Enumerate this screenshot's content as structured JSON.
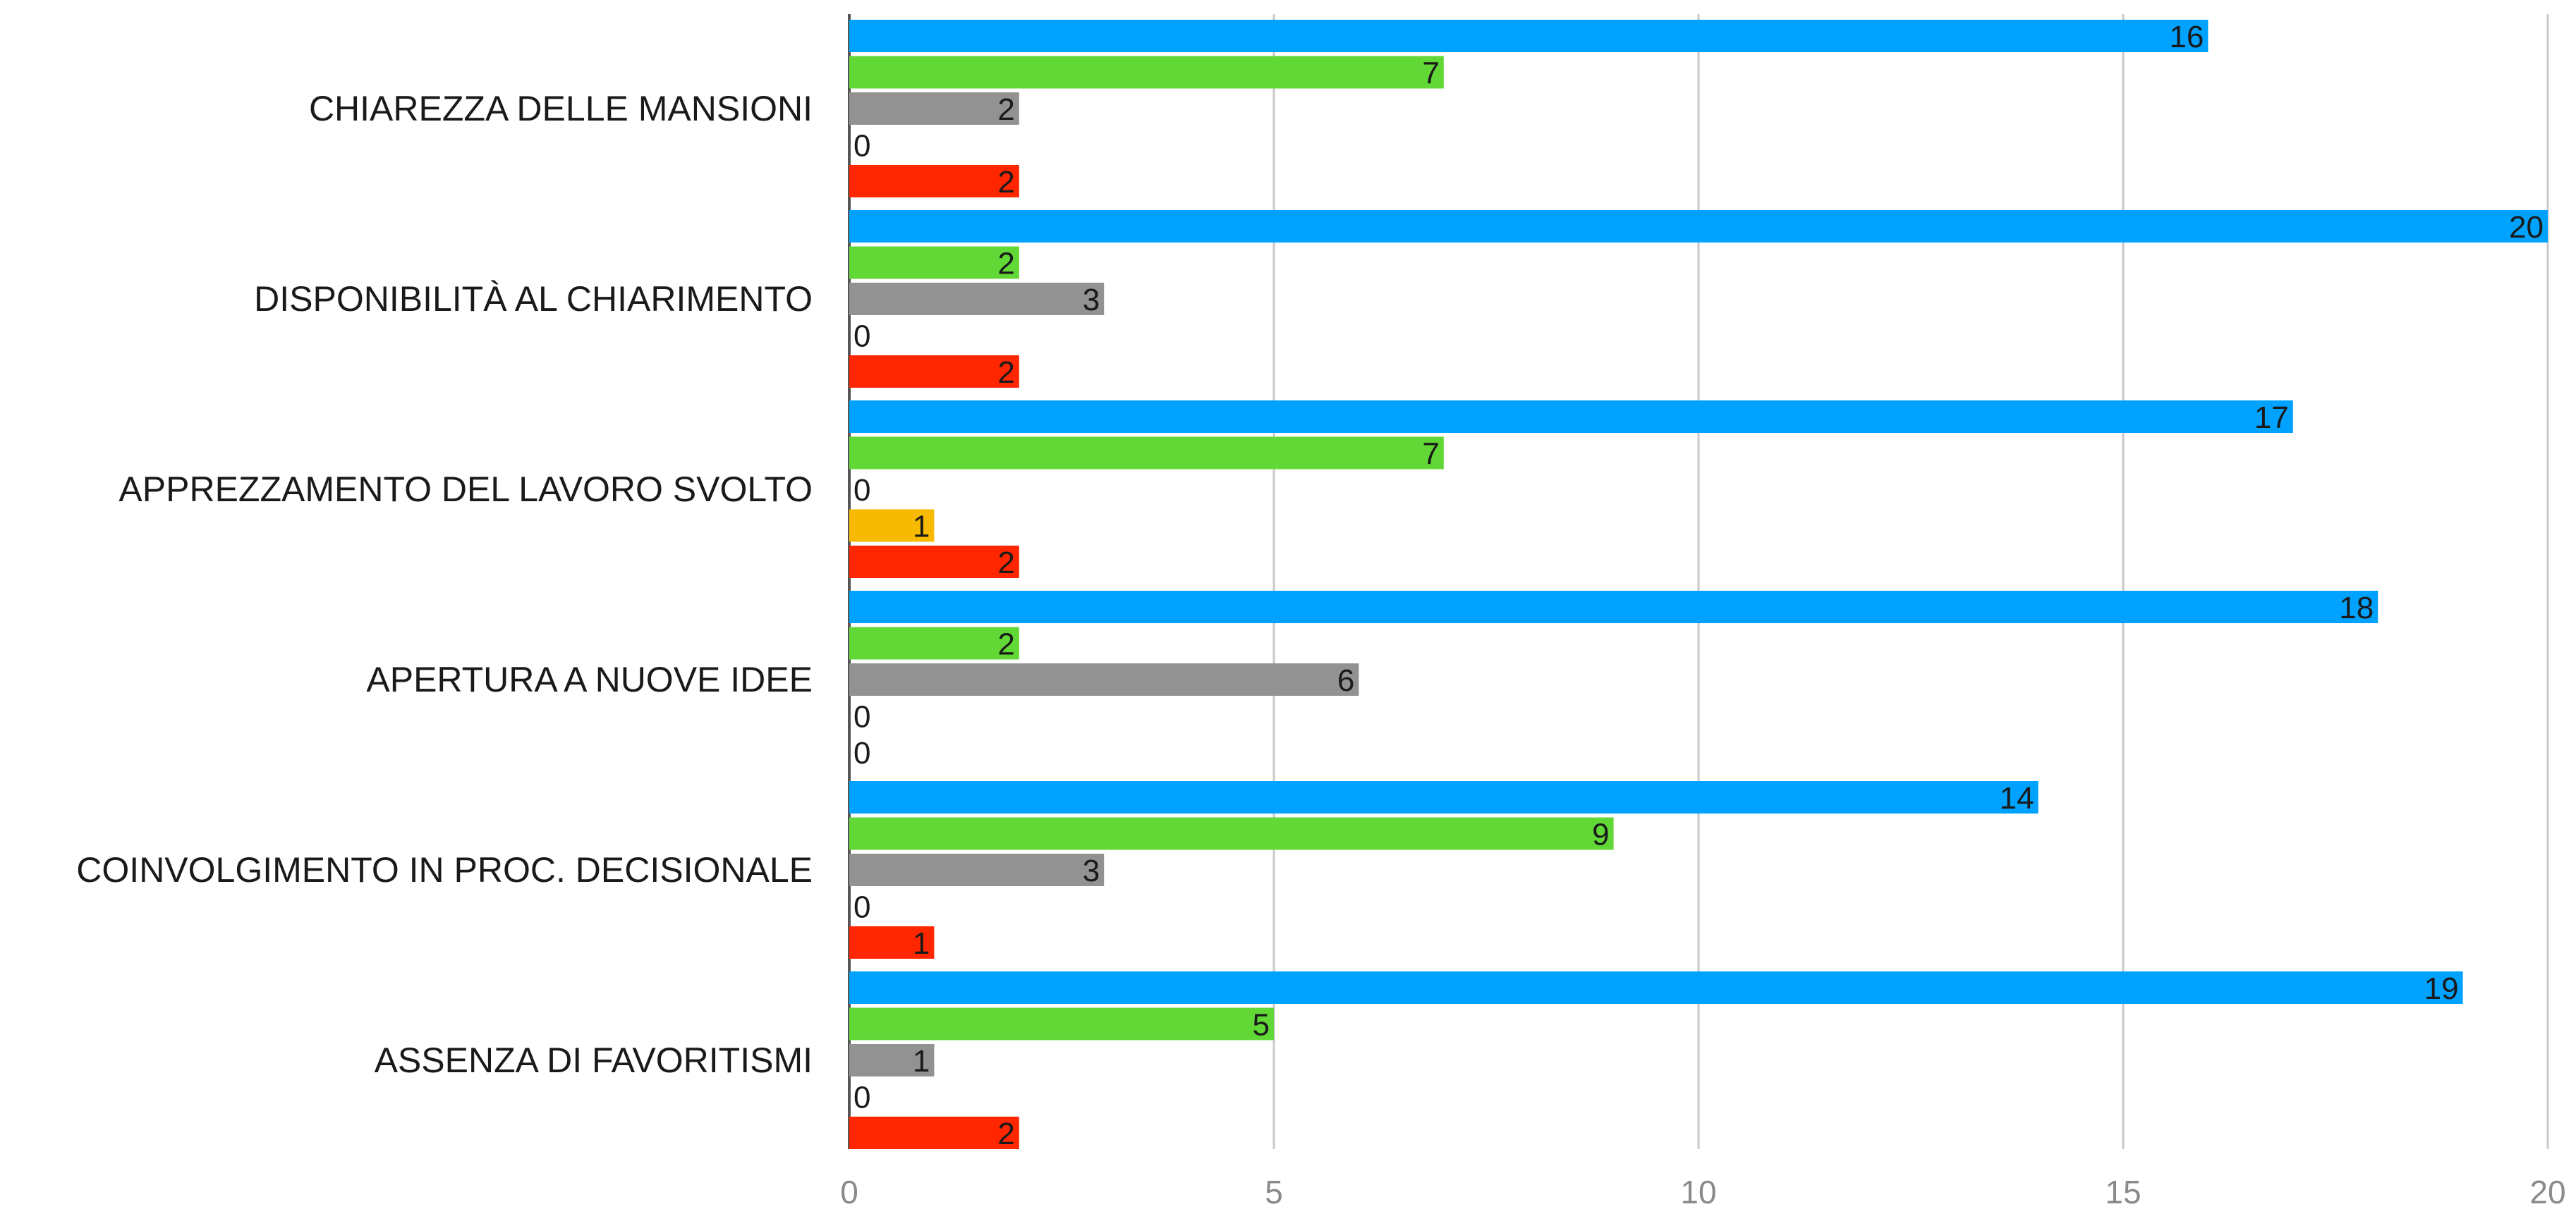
{
  "chart_data": {
    "type": "bar",
    "orientation": "horizontal",
    "categories": [
      "CHIAREZZA DELLE MANSIONI",
      "DISPONIBILITÀ AL CHIARIMENTO",
      "APPREZZAMENTO DEL LAVORO SVOLTO",
      "APERTURA A NUOVE IDEE",
      "COINVOLGIMENTO IN PROC. DECISIONALE",
      "ASSENZA DI FAVORITISMI"
    ],
    "series": [
      {
        "color": "#00a2ff",
        "values": [
          16,
          20,
          17,
          18,
          14,
          19
        ]
      },
      {
        "color": "#61d836",
        "values": [
          7,
          2,
          7,
          2,
          9,
          5
        ]
      },
      {
        "color": "#929292",
        "values": [
          2,
          3,
          0,
          6,
          3,
          1
        ]
      },
      {
        "color": "#f8ba00",
        "values": [
          0,
          0,
          1,
          0,
          0,
          0
        ]
      },
      {
        "color": "#ff2600",
        "values": [
          2,
          2,
          2,
          0,
          1,
          2
        ]
      }
    ],
    "xlim": [
      0,
      20
    ],
    "xticks": [
      0,
      5,
      10,
      15,
      20
    ],
    "grid": true,
    "legend": "none",
    "title": "",
    "xlabel": "",
    "ylabel": ""
  }
}
